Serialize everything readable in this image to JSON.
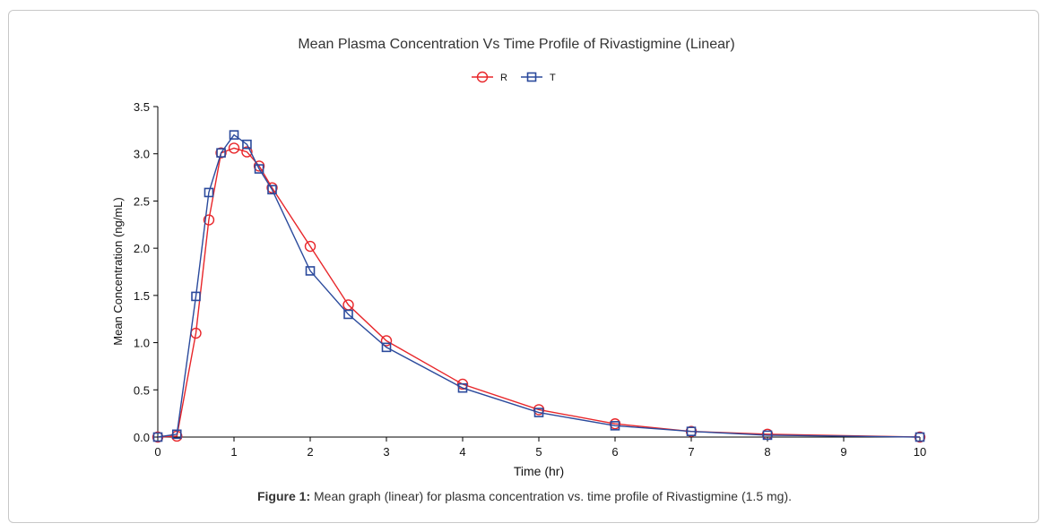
{
  "chart_data": {
    "type": "line",
    "title": "Mean Plasma Concentration Vs Time Profile of Rivastigmine (Linear)",
    "xlabel": "Time (hr)",
    "ylabel": "Mean Concentration (ng/mL)",
    "xlim": [
      0,
      10
    ],
    "ylim": [
      0,
      3.5
    ],
    "xticks": [
      "0",
      "1",
      "2",
      "3",
      "4",
      "5",
      "6",
      "7",
      "8",
      "9",
      "10"
    ],
    "yticks": [
      "0.0",
      "0.5",
      "1.0",
      "1.5",
      "2.0",
      "2.5",
      "3.0",
      "3.5"
    ],
    "grid": false,
    "legend_position": "top-center",
    "series": [
      {
        "name": "R",
        "color": "#e8262a",
        "marker": "circle",
        "x": [
          0,
          0.25,
          0.5,
          0.67,
          0.83,
          1.0,
          1.17,
          1.33,
          1.5,
          2.0,
          2.5,
          3.0,
          4.0,
          5.0,
          6.0,
          7.0,
          8.0,
          10.0
        ],
        "y": [
          0.0,
          0.01,
          1.1,
          2.3,
          3.01,
          3.06,
          3.02,
          2.87,
          2.64,
          2.02,
          1.4,
          1.02,
          0.56,
          0.29,
          0.14,
          0.06,
          0.03,
          0.0
        ]
      },
      {
        "name": "T",
        "color": "#2b4a9c",
        "marker": "square",
        "x": [
          0,
          0.25,
          0.5,
          0.67,
          0.83,
          1.0,
          1.17,
          1.33,
          1.5,
          2.0,
          2.5,
          3.0,
          4.0,
          5.0,
          6.0,
          7.0,
          8.0,
          10.0
        ],
        "y": [
          0.0,
          0.03,
          1.49,
          2.59,
          3.01,
          3.2,
          3.1,
          2.84,
          2.62,
          1.76,
          1.3,
          0.95,
          0.52,
          0.26,
          0.12,
          0.06,
          0.02,
          0.0
        ]
      }
    ]
  },
  "caption": {
    "label": "Figure 1:",
    "text": " Mean graph (linear) for plasma concentration vs. time profile of Rivastigmine (1.5 mg)."
  }
}
